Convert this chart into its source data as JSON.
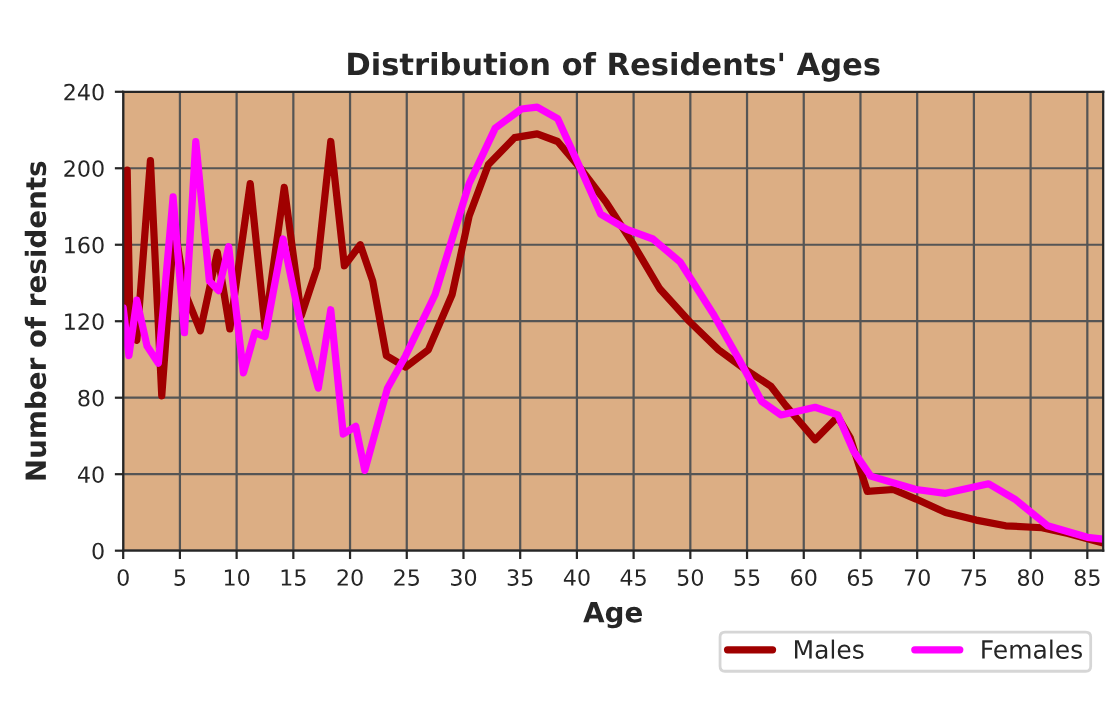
{
  "chart_data": {
    "type": "line",
    "title": "Distribution of Residents' Ages",
    "xlabel": "Age",
    "ylabel": "Number of residents",
    "xlim": [
      0,
      86.4
    ],
    "ylim": [
      0,
      240
    ],
    "xticks": [
      0,
      5,
      10,
      15,
      20,
      25,
      30,
      35,
      40,
      45,
      50,
      55,
      60,
      65,
      70,
      75,
      80,
      85
    ],
    "yticks": [
      0,
      40,
      80,
      120,
      160,
      200,
      240
    ],
    "grid": true,
    "legend": "bottom right",
    "marker": "none",
    "line_style": "solid",
    "series": [
      {
        "name": "Males",
        "color": "#a00000",
        "x": [
          0,
          0.35,
          0.6,
          1.2,
          2.4,
          3.4,
          4.5,
          5.5,
          6.8,
          8.3,
          9.4,
          11.2,
          12.5,
          14.2,
          15.7,
          17.1,
          18.3,
          19.5,
          20.9,
          22.0,
          23.2,
          24.9,
          26.9,
          29.0,
          30.5,
          32.2,
          34.5,
          36.5,
          38.3,
          40.3,
          42.6,
          45,
          47.3,
          49.9,
          52.5,
          54.8,
          57.1,
          58.4,
          61,
          63,
          64.1,
          65.6,
          67.9,
          69.9,
          72.5,
          75.2,
          77.8,
          81,
          83.3,
          86.4
        ],
        "values": [
          117,
          199,
          117,
          110,
          204,
          81,
          170,
          134,
          115,
          156,
          116,
          192,
          117,
          190,
          123,
          148,
          214,
          149,
          160,
          141,
          102,
          96,
          105,
          134,
          175,
          202,
          216,
          218,
          214,
          200,
          182,
          160,
          137,
          120,
          105,
          95,
          86,
          76,
          58,
          70,
          59,
          31,
          32,
          27,
          20,
          16,
          13,
          12,
          9,
          4
        ]
      },
      {
        "name": "Females",
        "color": "#ff00ff",
        "x": [
          0,
          0.5,
          1.2,
          2.1,
          3.1,
          4.4,
          5.4,
          6.4,
          7.6,
          8.4,
          9.3,
          10.6,
          11.6,
          12.5,
          14.1,
          15.7,
          17.2,
          18.3,
          19.4,
          20.5,
          21.3,
          23.3,
          24.9,
          27.5,
          30.5,
          32.8,
          35.1,
          36.5,
          38.3,
          40.3,
          42.1,
          44.4,
          46.7,
          49.1,
          52,
          54.3,
          56.3,
          58,
          61,
          63,
          64.4,
          65.9,
          69.9,
          72.5,
          76.3,
          78.6,
          81.5,
          85,
          86.4
        ],
        "values": [
          127,
          102,
          131,
          107,
          98,
          185,
          114,
          214,
          141,
          136,
          159,
          93,
          114,
          112,
          163,
          117,
          85,
          126,
          61,
          65,
          42,
          85,
          102,
          134,
          192,
          221,
          231,
          232,
          226,
          200,
          176,
          168,
          163,
          151,
          124,
          100,
          78,
          71,
          75,
          71,
          52,
          39,
          32,
          30,
          35,
          27,
          13,
          7,
          6
        ]
      }
    ]
  }
}
